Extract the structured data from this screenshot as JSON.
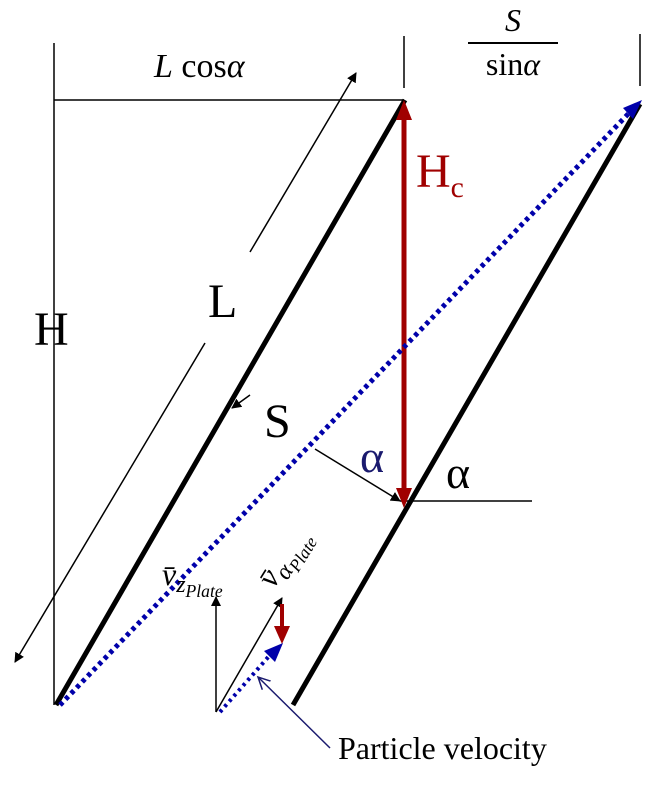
{
  "labels": {
    "lcos_L": "L",
    "lcos_cos": "cos",
    "lcos_alpha": "α",
    "frac_num": "S",
    "frac_den_sin": "sin",
    "frac_den_alpha": "α",
    "H": "H",
    "L": "L",
    "S": "S",
    "Hc_main": "H",
    "Hc_sub": "c",
    "alpha_inner": "α",
    "alpha_outer": "α",
    "vz_v": "v̄",
    "vz_z": "z",
    "vz_sub": "Plate",
    "va_v": "v̄",
    "va_alpha": "α",
    "va_sub": "Plate",
    "particle": "Particle velocity"
  },
  "colors": {
    "line": "#000000",
    "red": "#a00000",
    "blue": "#0000aa",
    "navy": "#1a1a6e"
  }
}
